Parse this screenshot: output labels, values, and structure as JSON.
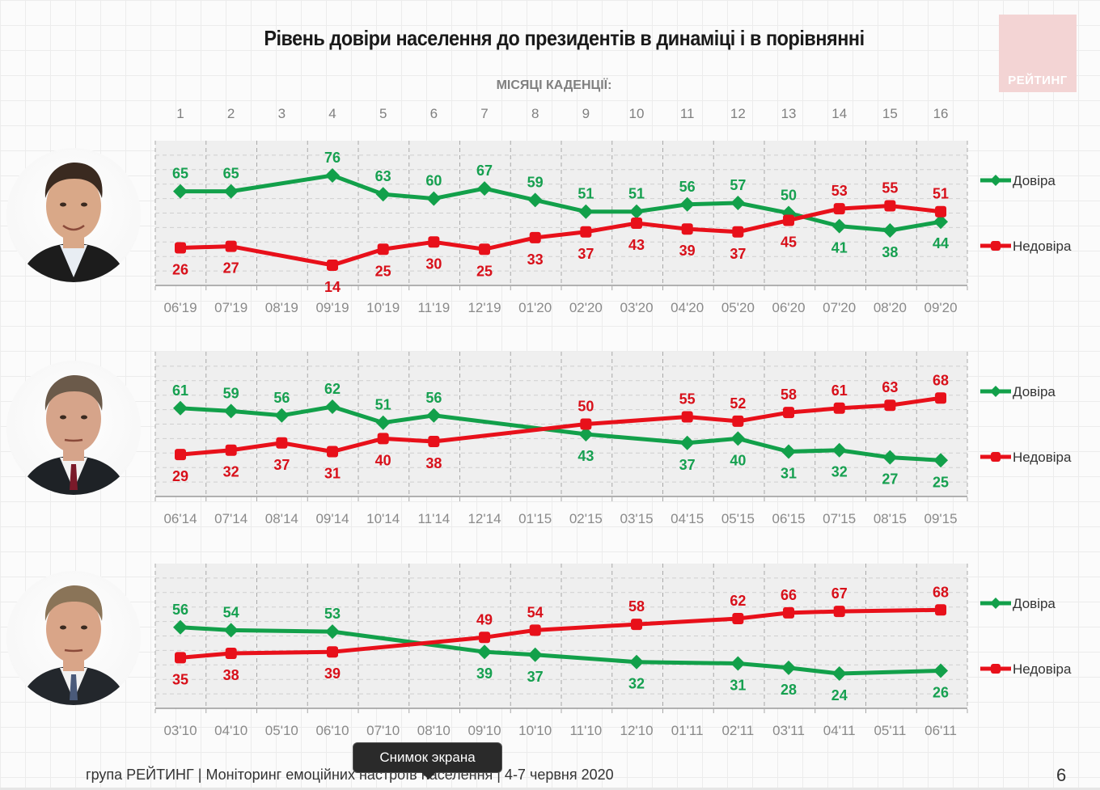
{
  "title": "Рівень довіри населення до президентів в динаміці і в порівнянні",
  "logo_text": "РЕЙТИНГ",
  "months_label": "МІСЯЦІ КАДЕНЦІЇ:",
  "month_numbers": [
    "1",
    "2",
    "3",
    "4",
    "5",
    "6",
    "7",
    "8",
    "9",
    "10",
    "11",
    "12",
    "13",
    "14",
    "15",
    "16"
  ],
  "colors": {
    "trust": "#12a04a",
    "distrust": "#e8101a",
    "trust_label": "#16a050",
    "distrust_label": "#d8101a"
  },
  "legend": {
    "trust": "Довіра",
    "distrust": "Недовіра"
  },
  "portraits": [
    {
      "name": "zelensky",
      "hair": "#3a2a20",
      "skin": "#d9a888",
      "suit": "#1c1c1c",
      "shirt": "#e8edf3"
    },
    {
      "name": "poroshenko",
      "hair": "#6b5a4a",
      "skin": "#d6a48a",
      "suit": "#1e2226",
      "shirt": "#f2f2f2"
    },
    {
      "name": "yanukovych",
      "hair": "#8a7458",
      "skin": "#d9a588",
      "suit": "#23272c",
      "shirt": "#f2f2f2"
    }
  ],
  "chart_data": [
    {
      "type": "line",
      "title": "Zelensky",
      "categories": [
        "06'19",
        "07'19",
        "08'19",
        "09'19",
        "10'19",
        "11'19",
        "12'19",
        "01'20",
        "02'20",
        "03'20",
        "04'20",
        "05'20",
        "06'20",
        "07'20",
        "08'20",
        "09'20"
      ],
      "ylim": [
        0,
        100
      ],
      "series": [
        {
          "name": "Довіра",
          "values": [
            65,
            65,
            null,
            76,
            63,
            60,
            67,
            59,
            51,
            51,
            56,
            57,
            50,
            41,
            38,
            44
          ]
        },
        {
          "name": "Недовіра",
          "values": [
            26,
            27,
            null,
            14,
            25,
            30,
            25,
            33,
            37,
            43,
            39,
            37,
            45,
            53,
            55,
            51
          ]
        }
      ]
    },
    {
      "type": "line",
      "title": "Poroshenko",
      "categories": [
        "06'14",
        "07'14",
        "08'14",
        "09'14",
        "10'14",
        "11'14",
        "12'14",
        "01'15",
        "02'15",
        "03'15",
        "04'15",
        "05'15",
        "06'15",
        "07'15",
        "08'15",
        "09'15"
      ],
      "ylim": [
        0,
        100
      ],
      "series": [
        {
          "name": "Довіра",
          "values": [
            61,
            59,
            56,
            62,
            51,
            56,
            null,
            null,
            43,
            null,
            37,
            40,
            31,
            32,
            27,
            25
          ]
        },
        {
          "name": "Недовіра",
          "values": [
            29,
            32,
            37,
            31,
            40,
            38,
            null,
            null,
            50,
            null,
            55,
            52,
            58,
            61,
            63,
            68
          ]
        }
      ]
    },
    {
      "type": "line",
      "title": "Yanukovych",
      "categories": [
        "03'10",
        "04'10",
        "05'10",
        "06'10",
        "07'10",
        "08'10",
        "09'10",
        "10'10",
        "11'10",
        "12'10",
        "01'11",
        "02'11",
        "03'11",
        "04'11",
        "05'11",
        "06'11"
      ],
      "ylim": [
        0,
        100
      ],
      "series": [
        {
          "name": "Довіра",
          "values": [
            56,
            54,
            null,
            53,
            null,
            null,
            39,
            37,
            null,
            32,
            null,
            31,
            28,
            24,
            null,
            26
          ]
        },
        {
          "name": "Недовіра",
          "values": [
            35,
            38,
            null,
            39,
            null,
            null,
            49,
            54,
            null,
            58,
            null,
            62,
            66,
            67,
            null,
            68
          ]
        }
      ]
    }
  ],
  "footer": "група РЕЙТИНГ  |  Моніторинг емоційних настроїв населення  | 4-7 червня  2020",
  "page_number": "6",
  "tooltip": "Снимок экрана"
}
